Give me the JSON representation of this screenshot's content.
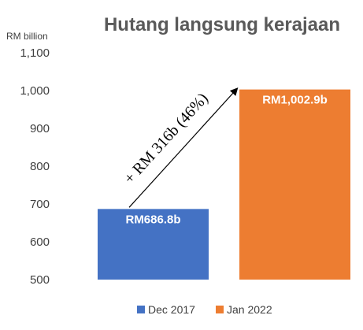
{
  "chart_data": {
    "type": "bar",
    "title": "Hutang langsung kerajaan",
    "unit_label": "RM billion",
    "categories": [
      "Dec 2017",
      "Jan 2022"
    ],
    "values": [
      686.8,
      1002.9
    ],
    "data_labels": [
      "RM686.8b",
      "RM1,002.9b"
    ],
    "colors": [
      "#4472c4",
      "#ed7d31"
    ],
    "ylim": [
      500,
      1100
    ],
    "yticks": [
      "500",
      "600",
      "700",
      "800",
      "900",
      "1,000",
      "1,100"
    ],
    "ytick_values": [
      500,
      600,
      700,
      800,
      900,
      1000,
      1100
    ],
    "grid": false,
    "legend": {
      "position": "bottom",
      "entries": [
        "Dec 2017",
        "Jan 2022"
      ]
    },
    "annotation": {
      "text": "+ RM 316b (46%)",
      "from_category": "Dec 2017",
      "to_category": "Jan 2022"
    }
  }
}
